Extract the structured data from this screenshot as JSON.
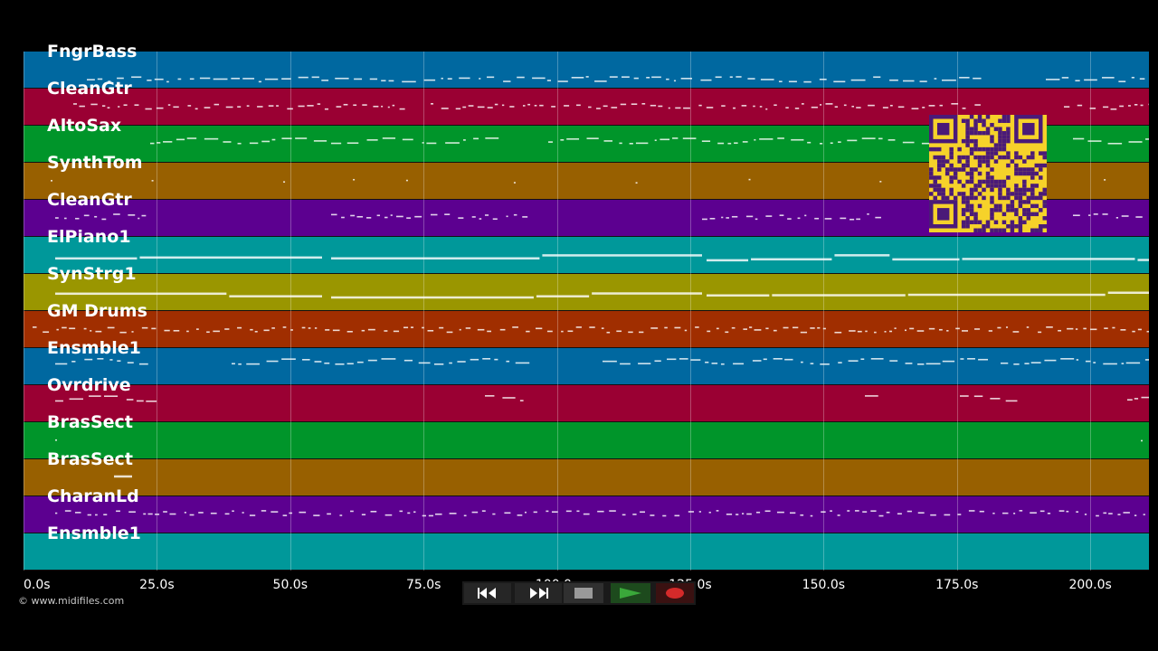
{
  "lane_colors": [
    "#0068a0",
    "#9a0033",
    "#00952a",
    "#986000",
    "#5c0090",
    "#00989a",
    "#9a9600",
    "#a02e00",
    "#0068a0",
    "#9a0033",
    "#00952a",
    "#986000",
    "#5c0090",
    "#00989a"
  ],
  "tracks": [
    {
      "name": "FngrBass"
    },
    {
      "name": "CleanGtr"
    },
    {
      "name": "AltoSax"
    },
    {
      "name": "SynthTom"
    },
    {
      "name": "CleanGtr"
    },
    {
      "name": "ElPiano1"
    },
    {
      "name": "SynStrg1"
    },
    {
      "name": "GM Drums"
    },
    {
      "name": "Ensmble1"
    },
    {
      "name": "Ovrdrive"
    },
    {
      "name": "BrasSect"
    },
    {
      "name": "BrasSect"
    },
    {
      "name": "CharanLd"
    },
    {
      "name": "Ensmble1"
    }
  ],
  "time_axis": {
    "max_seconds": 211,
    "ticks": [
      "0.0s",
      "25.0s",
      "50.0s",
      "75.0s",
      "100.0s",
      "125.0s",
      "150.0s",
      "175.0s",
      "200.0s"
    ],
    "tick_seconds": [
      0,
      25,
      50,
      75,
      100,
      125,
      150,
      175,
      200
    ]
  },
  "copyright": "© www.midifiles.com",
  "transport": {
    "rewind_icon": "rewind-icon",
    "fast_forward_icon": "fast-forward-icon",
    "stop_icon": "stop-icon",
    "play_icon": "play-icon",
    "record_icon": "record-icon",
    "accent_play": "#3aa83a",
    "accent_record": "#d42a2a"
  },
  "overlay": {
    "icon": "qr-code-icon",
    "color": "#f6d22a"
  }
}
